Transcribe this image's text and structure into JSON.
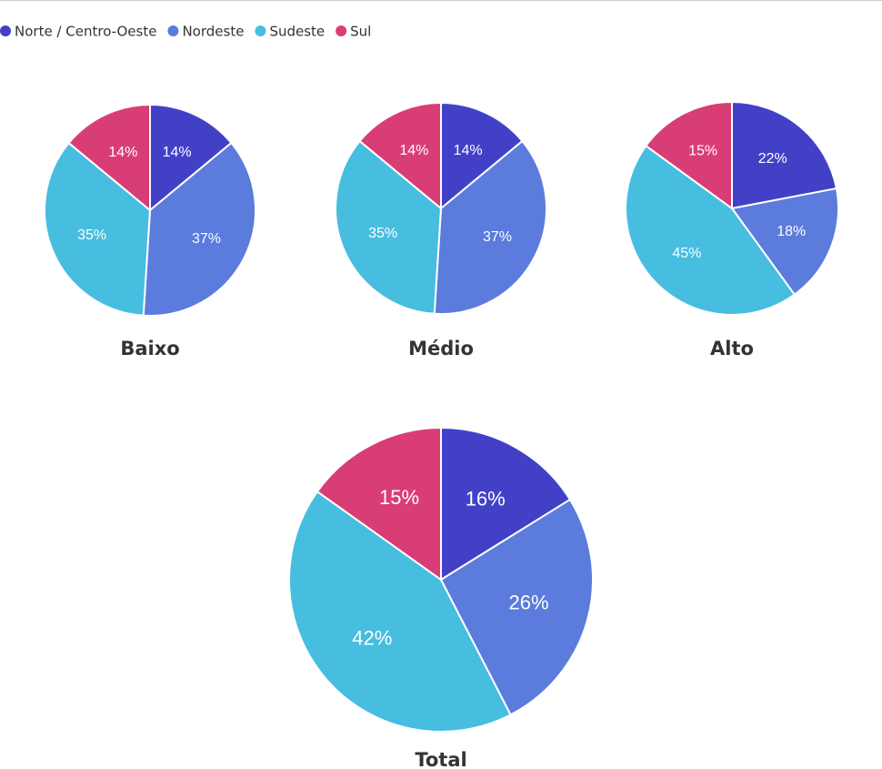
{
  "chart_data": [
    {
      "type": "pie",
      "title": "Baixo",
      "categories": [
        "Norte / Centro-Oeste",
        "Nordeste",
        "Sudeste",
        "Sul"
      ],
      "values": [
        14,
        37,
        35,
        14
      ],
      "value_labels": [
        "14%",
        "37%",
        "35%",
        "14%"
      ],
      "colors": [
        "#4340c8",
        "#5b7bdd",
        "#47bde0",
        "#d93d75"
      ],
      "legend": "top-left"
    },
    {
      "type": "pie",
      "title": "Médio",
      "categories": [
        "Norte / Centro-Oeste",
        "Nordeste",
        "Sudeste",
        "Sul"
      ],
      "values": [
        14,
        37,
        35,
        14
      ],
      "value_labels": [
        "14%",
        "37%",
        "35%",
        "14%"
      ],
      "colors": [
        "#4340c8",
        "#5b7bdd",
        "#47bde0",
        "#d93d75"
      ]
    },
    {
      "type": "pie",
      "title": "Alto",
      "categories": [
        "Norte / Centro-Oeste",
        "Nordeste",
        "Sudeste",
        "Sul"
      ],
      "values": [
        22,
        18,
        45,
        15
      ],
      "value_labels": [
        "22%",
        "18%",
        "45%",
        "15%"
      ],
      "colors": [
        "#4340c8",
        "#5b7bdd",
        "#47bde0",
        "#d93d75"
      ]
    },
    {
      "type": "pie",
      "title": "Total",
      "categories": [
        "Norte / Centro-Oeste",
        "Nordeste",
        "Sudeste",
        "Sul"
      ],
      "values": [
        16,
        26,
        42,
        15
      ],
      "value_labels": [
        "16%",
        "26%",
        "42%",
        "15%"
      ],
      "colors": [
        "#4340c8",
        "#5b7bdd",
        "#47bde0",
        "#d93d75"
      ]
    }
  ]
}
